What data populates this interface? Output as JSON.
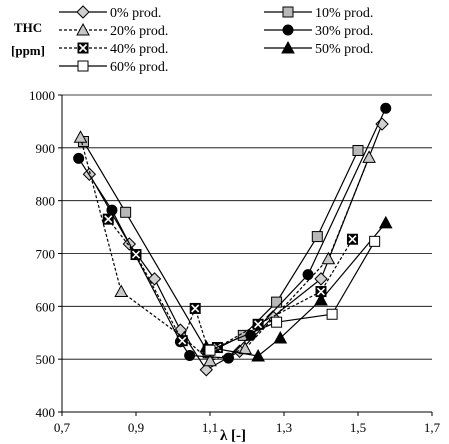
{
  "chart_data": {
    "type": "line",
    "ylabel_line1": "THC",
    "ylabel_line2": "[ppm]",
    "xlabel": "λ [-]",
    "xlim": [
      0.7,
      1.7
    ],
    "ylim": [
      400,
      1000
    ],
    "xticks": [
      "0,7",
      "0,9",
      "1,1",
      "1,3",
      "1,5",
      "1,7"
    ],
    "yticks": [
      "400",
      "500",
      "600",
      "700",
      "800",
      "900",
      "1000"
    ],
    "grid": "horizontal",
    "legend_position": "top",
    "series": [
      {
        "name": "0% prod.",
        "marker": "diamond",
        "fill": "#d0d0d0",
        "dash": false,
        "x": [
          0.774,
          0.882,
          0.95,
          1.02,
          1.09,
          1.18,
          1.27,
          1.4,
          1.565
        ],
        "y": [
          850,
          718,
          652,
          555,
          480,
          515,
          580,
          652,
          945
        ]
      },
      {
        "name": "10% prod.",
        "marker": "square",
        "fill": "#b8b8b8",
        "dash": false,
        "x": [
          0.758,
          0.872,
          1.095,
          1.19,
          1.28,
          1.39,
          1.5
        ],
        "y": [
          912,
          778,
          512,
          545,
          608,
          732,
          895
        ]
      },
      {
        "name": "20% prod.",
        "marker": "triangle",
        "fill": "#c8c8c8",
        "dash": true,
        "x": [
          0.75,
          0.86,
          1.03,
          1.1,
          1.195,
          1.42,
          1.53
        ],
        "y": [
          920,
          628,
          540,
          497,
          520,
          690,
          882
        ]
      },
      {
        "name": "30% prod.",
        "marker": "circle",
        "fill": "#000000",
        "dash": false,
        "x": [
          0.745,
          0.835,
          1.02,
          1.045,
          1.15,
          1.21,
          1.365,
          1.575
        ],
        "y": [
          880,
          782,
          533,
          507,
          502,
          545,
          660,
          975
        ]
      },
      {
        "name": "40% prod.",
        "marker": "xsquare",
        "fill": "#000000",
        "dash": true,
        "x": [
          0.825,
          0.9,
          1.025,
          1.06,
          1.095,
          1.12,
          1.23,
          1.4,
          1.485
        ],
        "y": [
          765,
          698,
          535,
          596,
          518,
          522,
          566,
          628,
          727
        ]
      },
      {
        "name": "50% prod.",
        "marker": "triangle",
        "fill": "#000000",
        "dash": false,
        "x": [
          1.09,
          1.23,
          1.29,
          1.4,
          1.575
        ],
        "y": [
          523,
          506,
          540,
          612,
          758
        ]
      },
      {
        "name": "60% prod.",
        "marker": "square",
        "fill": "#ffffff",
        "dash": false,
        "x": [
          1.1,
          1.28,
          1.43,
          1.545
        ],
        "y": [
          517,
          570,
          585,
          723
        ]
      }
    ]
  }
}
